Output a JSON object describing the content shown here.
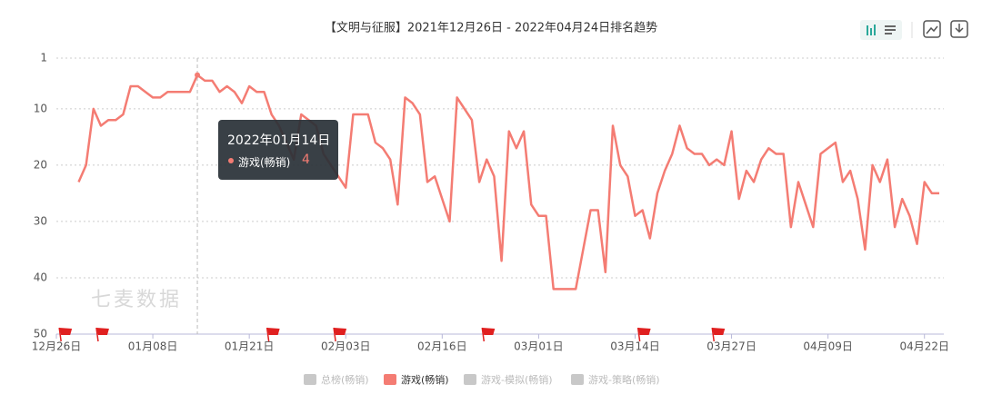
{
  "chart_data": {
    "type": "line",
    "title": "【文明与征服】2021年12月26日 - 2022年04月24日排名趋势",
    "categories": [
      "12月26日",
      null,
      null,
      null,
      null,
      null,
      null,
      null,
      null,
      null,
      null,
      null,
      null,
      "01月08日",
      null,
      null,
      null,
      null,
      null,
      null,
      null,
      null,
      null,
      null,
      null,
      null,
      "01月21日",
      null,
      null,
      null,
      null,
      null,
      null,
      null,
      null,
      null,
      null,
      null,
      null,
      "02月03日",
      null,
      null,
      null,
      null,
      null,
      null,
      null,
      null,
      null,
      null,
      null,
      null,
      "02月16日",
      null,
      null,
      null,
      null,
      null,
      null,
      null,
      null,
      null,
      null,
      null,
      null,
      "03月01日",
      null,
      null,
      null,
      null,
      null,
      null,
      null,
      null,
      null,
      null,
      null,
      null,
      "03月14日",
      null,
      null,
      null,
      null,
      null,
      null,
      null,
      null,
      null,
      null,
      null,
      null,
      "03月27日",
      null,
      null,
      null,
      null,
      null,
      null,
      null,
      null,
      null,
      null,
      null,
      null,
      "04月09日",
      null,
      null,
      null,
      null,
      null,
      null,
      null,
      null,
      null,
      null,
      null,
      null,
      "04月22日",
      null,
      null
    ],
    "series": [
      {
        "name": "游戏(畅销)",
        "color": "#f47c73",
        "values": [
          null,
          null,
          null,
          23,
          20,
          10,
          13,
          12,
          12,
          11,
          6,
          6,
          7,
          8,
          8,
          7,
          7,
          7,
          7,
          4,
          5,
          5,
          7,
          6,
          7,
          9,
          6,
          7,
          7,
          11,
          13,
          16,
          19,
          11,
          12,
          13,
          18,
          20,
          22,
          24,
          11,
          11,
          11,
          16,
          17,
          19,
          27,
          8,
          9,
          11,
          23,
          22,
          26,
          30,
          8,
          10,
          12,
          23,
          19,
          22,
          37,
          14,
          17,
          14,
          27,
          29,
          29,
          42,
          42,
          42,
          42,
          35,
          28,
          28,
          39,
          13,
          20,
          22,
          29,
          28,
          33,
          25,
          21,
          18,
          13,
          17,
          18,
          18,
          20,
          19,
          20,
          14,
          26,
          21,
          23,
          19,
          17,
          18,
          18,
          31,
          23,
          27,
          31,
          18,
          17,
          16,
          23,
          21,
          26,
          35,
          20,
          23,
          19,
          31,
          26,
          29,
          34,
          23,
          25,
          25
        ]
      }
    ],
    "inactive_series": [
      {
        "name": "总榜(畅销)",
        "color": "#c8c8c8"
      },
      {
        "name": "游戏-模拟(畅销)",
        "color": "#c8c8c8"
      },
      {
        "name": "游戏-策略(畅销)",
        "color": "#c8c8c8"
      }
    ],
    "ylim": [
      1,
      50
    ],
    "y_inverted": true,
    "yticks": [
      1,
      10,
      20,
      30,
      40,
      50
    ],
    "grid": true,
    "event_indices": [
      1,
      6,
      29,
      38,
      58,
      79,
      89
    ],
    "watermark": "七麦数据",
    "tooltip": {
      "title": "2022年01月14日"
    }
  }
}
